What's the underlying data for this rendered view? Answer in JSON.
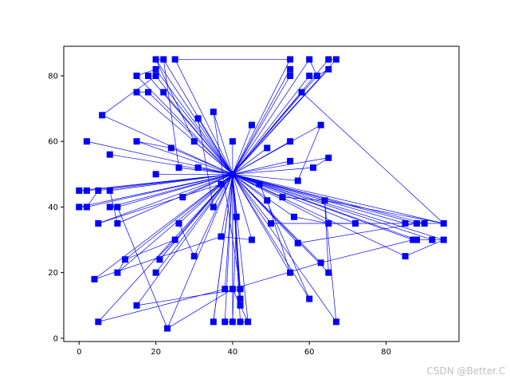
{
  "chart_data": {
    "type": "line",
    "title": "",
    "xlabel": "",
    "ylabel": "",
    "xlim": [
      -4,
      99
    ],
    "ylim": [
      -1,
      89
    ],
    "xticks": [
      0,
      20,
      40,
      60,
      80
    ],
    "yticks": [
      0,
      20,
      40,
      60,
      80
    ],
    "grid": false,
    "legend": "none",
    "line_color": "#0000ff",
    "marker": "square",
    "hub": [
      40,
      50
    ],
    "points": [
      [
        20,
        85
      ],
      [
        22,
        85
      ],
      [
        25,
        85
      ],
      [
        55,
        85
      ],
      [
        60,
        85
      ],
      [
        65,
        85
      ],
      [
        67,
        85
      ],
      [
        20,
        82
      ],
      [
        55,
        82
      ],
      [
        65,
        82
      ],
      [
        15,
        80
      ],
      [
        18,
        80
      ],
      [
        20,
        80
      ],
      [
        55,
        80
      ],
      [
        60,
        80
      ],
      [
        62,
        80
      ],
      [
        15,
        75
      ],
      [
        18,
        75
      ],
      [
        22,
        75
      ],
      [
        58,
        75
      ],
      [
        35,
        69
      ],
      [
        6,
        68
      ],
      [
        31,
        67
      ],
      [
        45,
        65
      ],
      [
        63,
        65
      ],
      [
        2,
        60
      ],
      [
        15,
        60
      ],
      [
        30,
        60
      ],
      [
        40,
        60
      ],
      [
        55,
        60
      ],
      [
        24,
        58
      ],
      [
        49,
        58
      ],
      [
        8,
        56
      ],
      [
        55,
        54
      ],
      [
        65,
        55
      ],
      [
        26,
        52
      ],
      [
        31,
        52
      ],
      [
        61,
        52
      ],
      [
        20,
        50
      ],
      [
        57,
        48
      ],
      [
        47,
        47
      ],
      [
        37,
        47
      ],
      [
        0,
        45
      ],
      [
        2,
        45
      ],
      [
        5,
        45
      ],
      [
        8,
        45
      ],
      [
        27,
        43
      ],
      [
        53,
        43
      ],
      [
        64,
        42
      ],
      [
        49,
        42
      ],
      [
        0,
        40
      ],
      [
        2,
        40
      ],
      [
        8,
        40
      ],
      [
        10,
        40
      ],
      [
        35,
        40
      ],
      [
        41,
        37
      ],
      [
        56,
        37
      ],
      [
        5,
        35
      ],
      [
        10,
        35
      ],
      [
        26,
        35
      ],
      [
        50,
        35
      ],
      [
        65,
        35
      ],
      [
        72,
        35
      ],
      [
        85,
        35
      ],
      [
        88,
        35
      ],
      [
        90,
        35
      ],
      [
        95,
        35
      ],
      [
        37,
        31
      ],
      [
        25,
        30
      ],
      [
        45,
        30
      ],
      [
        57,
        29
      ],
      [
        87,
        30
      ],
      [
        88,
        30
      ],
      [
        92,
        30
      ],
      [
        95,
        30
      ],
      [
        12,
        24
      ],
      [
        21,
        24
      ],
      [
        30,
        25
      ],
      [
        85,
        25
      ],
      [
        63,
        23
      ],
      [
        10,
        20
      ],
      [
        20,
        20
      ],
      [
        55,
        20
      ],
      [
        65,
        20
      ],
      [
        4,
        18
      ],
      [
        38,
        15
      ],
      [
        40,
        15
      ],
      [
        42,
        15
      ],
      [
        42,
        12
      ],
      [
        60,
        12
      ],
      [
        42,
        10
      ],
      [
        15,
        10
      ],
      [
        5,
        5
      ],
      [
        35,
        5
      ],
      [
        38,
        5
      ],
      [
        40,
        5
      ],
      [
        42,
        5
      ],
      [
        44,
        5
      ],
      [
        67,
        5
      ],
      [
        23,
        3
      ]
    ],
    "edges": [
      [
        [
          25,
          85
        ],
        [
          55,
          85
        ]
      ],
      [
        [
          20,
          85
        ],
        [
          22,
          85
        ]
      ],
      [
        [
          65,
          85
        ],
        [
          67,
          85
        ]
      ],
      [
        [
          60,
          85
        ],
        [
          62,
          80
        ]
      ],
      [
        [
          18,
          80
        ],
        [
          20,
          80
        ]
      ],
      [
        [
          15,
          80
        ],
        [
          20,
          82
        ]
      ],
      [
        [
          60,
          80
        ],
        [
          62,
          80
        ]
      ],
      [
        [
          62,
          80
        ],
        [
          65,
          82
        ]
      ],
      [
        [
          58,
          75
        ],
        [
          95,
          35
        ]
      ],
      [
        [
          15,
          75
        ],
        [
          18,
          75
        ]
      ],
      [
        [
          20,
          85
        ],
        [
          30,
          60
        ]
      ],
      [
        [
          22,
          85
        ],
        [
          26,
          52
        ]
      ],
      [
        [
          20,
          82
        ],
        [
          20,
          80
        ]
      ],
      [
        [
          6,
          68
        ],
        [
          20,
          80
        ]
      ],
      [
        [
          35,
          69
        ],
        [
          42,
          15
        ]
      ],
      [
        [
          31,
          67
        ],
        [
          35,
          40
        ]
      ],
      [
        [
          24,
          58
        ],
        [
          15,
          60
        ]
      ],
      [
        [
          63,
          65
        ],
        [
          57,
          48
        ]
      ],
      [
        [
          61,
          52
        ],
        [
          65,
          55
        ]
      ],
      [
        [
          0,
          45
        ],
        [
          2,
          45
        ]
      ],
      [
        [
          0,
          40
        ],
        [
          2,
          40
        ]
      ],
      [
        [
          8,
          40
        ],
        [
          10,
          40
        ]
      ],
      [
        [
          10,
          40
        ],
        [
          23,
          3
        ]
      ],
      [
        [
          8,
          45
        ],
        [
          10,
          35
        ]
      ],
      [
        [
          5,
          45
        ],
        [
          2,
          40
        ]
      ],
      [
        [
          26,
          35
        ],
        [
          30,
          25
        ]
      ],
      [
        [
          12,
          24
        ],
        [
          25,
          30
        ]
      ],
      [
        [
          10,
          20
        ],
        [
          12,
          24
        ]
      ],
      [
        [
          20,
          24
        ],
        [
          25,
          30
        ]
      ],
      [
        [
          4,
          18
        ],
        [
          37,
          31
        ]
      ],
      [
        [
          37,
          31
        ],
        [
          45,
          30
        ]
      ],
      [
        [
          49,
          42
        ],
        [
          55,
          20
        ]
      ],
      [
        [
          50,
          35
        ],
        [
          72,
          35
        ]
      ],
      [
        [
          56,
          37
        ],
        [
          65,
          35
        ]
      ],
      [
        [
          65,
          35
        ],
        [
          85,
          35
        ]
      ],
      [
        [
          85,
          35
        ],
        [
          95,
          35
        ]
      ],
      [
        [
          88,
          35
        ],
        [
          90,
          35
        ]
      ],
      [
        [
          57,
          29
        ],
        [
          88,
          35
        ]
      ],
      [
        [
          87,
          30
        ],
        [
          95,
          30
        ]
      ],
      [
        [
          85,
          25
        ],
        [
          95,
          30
        ]
      ],
      [
        [
          63,
          23
        ],
        [
          87,
          30
        ]
      ],
      [
        [
          53,
          43
        ],
        [
          64,
          42
        ]
      ],
      [
        [
          64,
          42
        ],
        [
          95,
          35
        ]
      ],
      [
        [
          64,
          42
        ],
        [
          67,
          5
        ]
      ],
      [
        [
          64,
          42
        ],
        [
          65,
          20
        ]
      ],
      [
        [
          40,
          15
        ],
        [
          63,
          23
        ]
      ],
      [
        [
          41,
          37
        ],
        [
          40,
          5
        ]
      ],
      [
        [
          47,
          47
        ],
        [
          60,
          12
        ]
      ],
      [
        [
          38,
          15
        ],
        [
          5,
          5
        ]
      ],
      [
        [
          15,
          10
        ],
        [
          42,
          15
        ]
      ],
      [
        [
          35,
          5
        ],
        [
          40,
          50
        ]
      ],
      [
        [
          44,
          5
        ],
        [
          40,
          15
        ]
      ],
      [
        [
          23,
          3
        ],
        [
          40,
          15
        ]
      ],
      [
        [
          42,
          10
        ],
        [
          42,
          15
        ]
      ],
      [
        [
          42,
          12
        ],
        [
          42,
          10
        ]
      ],
      [
        [
          38,
          5
        ],
        [
          40,
          5
        ]
      ],
      [
        [
          42,
          5
        ],
        [
          44,
          5
        ]
      ],
      [
        [
          5,
          35
        ],
        [
          37,
          47
        ]
      ],
      [
        [
          21,
          24
        ],
        [
          40,
          50
        ]
      ]
    ]
  },
  "watermark": "CSDN @Better.C"
}
